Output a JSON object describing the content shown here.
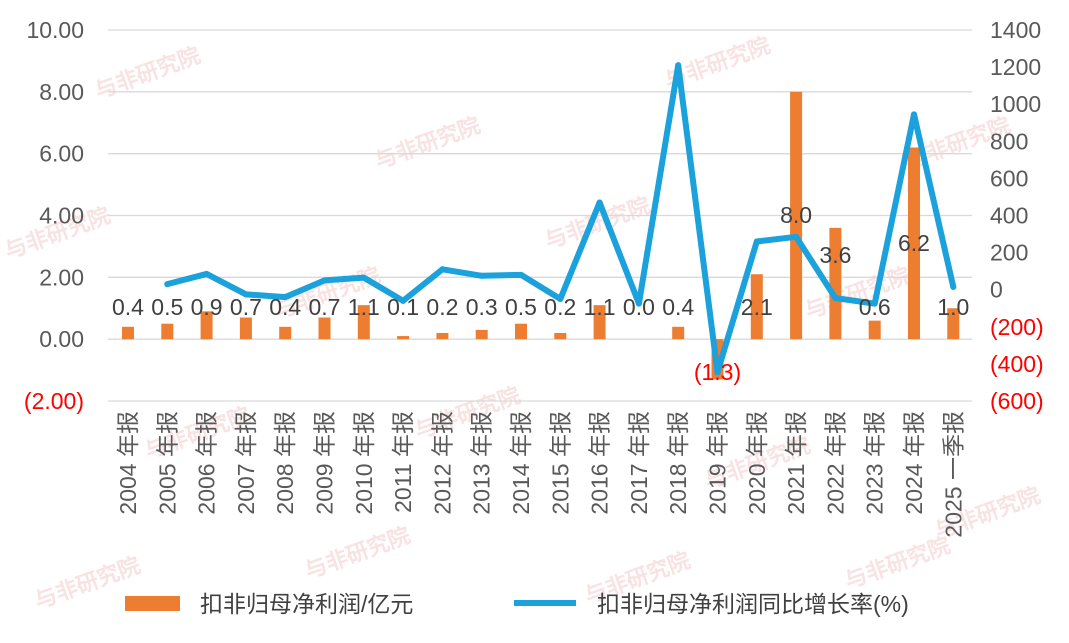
{
  "watermark": "与非研究院",
  "chart_data": {
    "type": "bar",
    "categories": [
      "2004 年报",
      "2005 年报",
      "2006 年报",
      "2007 年报",
      "2008 年报",
      "2009 年报",
      "2010 年报",
      "2011 年报",
      "2012 年报",
      "2013 年报",
      "2014 年报",
      "2015 年报",
      "2016 年报",
      "2017 年报",
      "2018 年报",
      "2019 年报",
      "2020 年报",
      "2021 年报",
      "2022 年报",
      "2023 年报",
      "2024 年报",
      "2025 一季报"
    ],
    "series": [
      {
        "name": "扣非归母净利润/亿元",
        "type": "bar",
        "axis": "left",
        "color": "#ED7D31",
        "values": [
          0.4,
          0.5,
          0.9,
          0.7,
          0.4,
          0.7,
          1.1,
          0.1,
          0.2,
          0.3,
          0.5,
          0.2,
          1.1,
          0.0,
          0.4,
          -1.3,
          2.1,
          8.0,
          3.6,
          0.6,
          6.2,
          1.0
        ],
        "data_labels": [
          "0.4",
          "0.5",
          "0.9",
          "0.7",
          "0.4",
          "0.7",
          "1.1",
          "0.1",
          "0.2",
          "0.3",
          "0.5",
          "0.2",
          "1.1",
          "0.0",
          "0.4",
          "(1.3)",
          "2.1",
          "8.0",
          "3.6",
          "0.6",
          "6.2",
          "1.0"
        ]
      },
      {
        "name": "扣非归母净利润同比增长率(%)",
        "type": "line",
        "axis": "right",
        "color": "#1BA1DB",
        "values": [
          null,
          30,
          85,
          -25,
          -40,
          50,
          65,
          -60,
          110,
          75,
          80,
          -50,
          470,
          -75,
          1210,
          -445,
          260,
          285,
          -45,
          -75,
          945,
          15
        ]
      }
    ],
    "y_left": {
      "min": -2,
      "max": 10,
      "tick_values": [
        10,
        8,
        6,
        4,
        2,
        0,
        -2
      ],
      "tick_labels": [
        "10.00",
        "8.00",
        "6.00",
        "4.00",
        "2.00",
        "0.00",
        "(2.00)"
      ]
    },
    "y_right": {
      "min": -600,
      "max": 1400,
      "tick_values": [
        1400,
        1200,
        1000,
        800,
        600,
        400,
        200,
        0,
        -200,
        -400,
        -600
      ],
      "tick_labels": [
        "1400",
        "1200",
        "1000",
        "800",
        "600",
        "400",
        "200",
        "0",
        "(200)",
        "(400)",
        "(600)"
      ]
    },
    "grid": true,
    "legend": "bottom",
    "negative_color": "#FF0000"
  }
}
